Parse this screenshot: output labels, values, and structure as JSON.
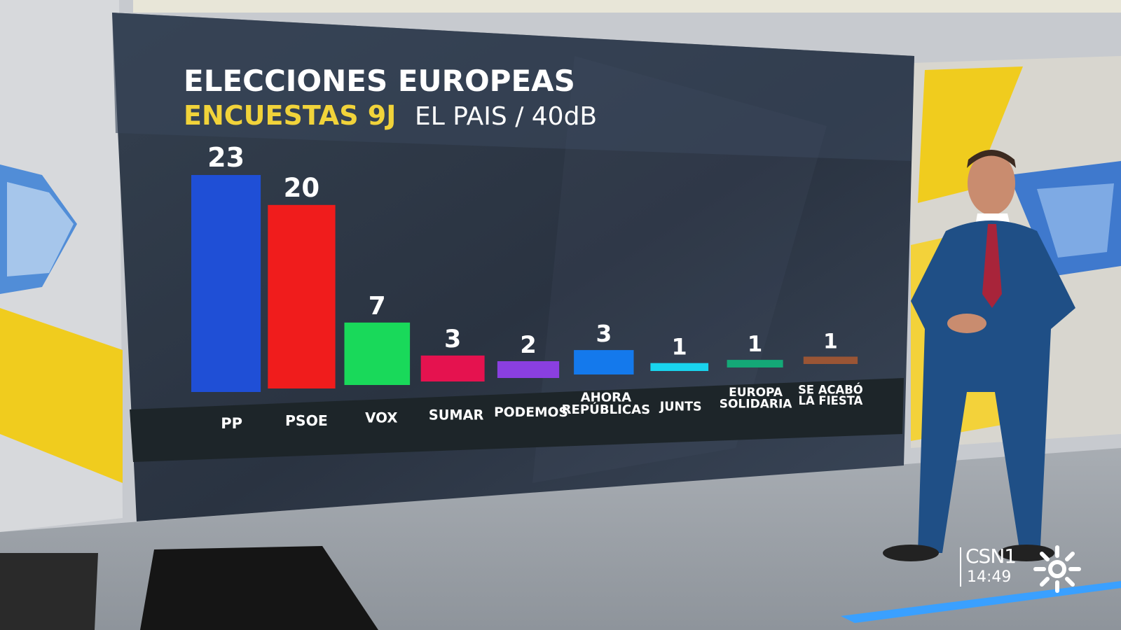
{
  "title": "ELECCIONES EUROPEAS",
  "subtitle_highlight": "ENCUESTAS 9J",
  "subtitle_source": "EL PAIS / 40dB",
  "colors": {
    "panel": "#2b3544",
    "title": "#ffffff",
    "highlight": "#f1d33a",
    "label_band": "#1d2529"
  },
  "chart_data": {
    "type": "bar",
    "title": "ELECCIONES EUROPEAS",
    "subtitle": "ENCUESTAS 9J EL PAIS / 40dB",
    "xlabel": "",
    "ylabel": "",
    "grid": false,
    "categories": [
      "PP",
      "PSOE",
      "VOX",
      "SUMAR",
      "PODEMOS",
      "AHORA REPÚBLICAS",
      "JUNTS",
      "EUROPA SOLIDARIA",
      "SE ACABÓ LA FIESTA"
    ],
    "category_lines": [
      [
        "PP"
      ],
      [
        "PSOE"
      ],
      [
        "VOX"
      ],
      [
        "SUMAR"
      ],
      [
        "PODEMOS"
      ],
      [
        "AHORA",
        "REPÚBLICAS"
      ],
      [
        "JUNTS"
      ],
      [
        "EUROPA",
        "SOLIDARIA"
      ],
      [
        "SE ACABÓ",
        "LA FIESTA"
      ]
    ],
    "values": [
      23,
      20,
      7,
      3,
      2,
      3,
      1,
      1,
      1
    ],
    "value_labels": [
      "23",
      "20",
      "7",
      "3",
      "2",
      "3",
      "1",
      "1",
      "1"
    ],
    "bar_colors": [
      "#1f4fd6",
      "#f01c1c",
      "#19d95a",
      "#e5124f",
      "#8a3fe0",
      "#1479ec",
      "#19d4ee",
      "#14a877",
      "#9a5535"
    ],
    "ylim": [
      0,
      23
    ]
  },
  "channel": {
    "name": "CSN1",
    "time": "14:49"
  }
}
